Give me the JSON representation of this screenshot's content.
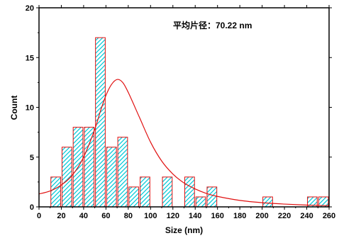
{
  "chart_data": {
    "type": "bar",
    "subtype": "histogram with fitted curve",
    "xlabel": "Size (nm)",
    "ylabel": "Count",
    "annotation": "平均片径：70.22 nm",
    "xlim": [
      0,
      260
    ],
    "ylim": [
      0,
      20
    ],
    "xticks": [
      0,
      20,
      40,
      60,
      80,
      100,
      120,
      140,
      160,
      180,
      200,
      220,
      240,
      260
    ],
    "yticks": [
      0,
      5,
      10,
      15,
      20
    ],
    "bin_width": 10,
    "bins": [
      {
        "start": 10,
        "end": 20,
        "count": 3
      },
      {
        "start": 20,
        "end": 30,
        "count": 6
      },
      {
        "start": 30,
        "end": 40,
        "count": 8
      },
      {
        "start": 40,
        "end": 50,
        "count": 8
      },
      {
        "start": 50,
        "end": 60,
        "count": 17
      },
      {
        "start": 60,
        "end": 70,
        "count": 6
      },
      {
        "start": 70,
        "end": 80,
        "count": 7
      },
      {
        "start": 80,
        "end": 90,
        "count": 2
      },
      {
        "start": 90,
        "end": 100,
        "count": 3
      },
      {
        "start": 110,
        "end": 120,
        "count": 3
      },
      {
        "start": 130,
        "end": 140,
        "count": 3
      },
      {
        "start": 140,
        "end": 150,
        "count": 1
      },
      {
        "start": 150,
        "end": 160,
        "count": 2
      },
      {
        "start": 200,
        "end": 210,
        "count": 1
      },
      {
        "start": 240,
        "end": 250,
        "count": 1
      },
      {
        "start": 250,
        "end": 260,
        "count": 1
      }
    ],
    "fit_curve": {
      "x": [
        0,
        10,
        20,
        30,
        40,
        50,
        55,
        60,
        65,
        70,
        75,
        80,
        90,
        100,
        110,
        120,
        130,
        140,
        150,
        160,
        180,
        200,
        220,
        240,
        260
      ],
      "y": [
        1.3,
        1.6,
        2.2,
        3.2,
        5.0,
        7.8,
        9.6,
        11.2,
        12.3,
        12.8,
        12.5,
        11.5,
        9.0,
        6.5,
        4.6,
        3.3,
        2.4,
        1.8,
        1.35,
        1.05,
        0.65,
        0.42,
        0.28,
        0.18,
        0.12
      ]
    },
    "grid": false,
    "colors": {
      "bar_edge": "#e01010",
      "bar_hatch": "#00c8d8",
      "bar_fill": "#ffffff",
      "fit_curve": "#e01010",
      "axes": "#000000"
    }
  }
}
